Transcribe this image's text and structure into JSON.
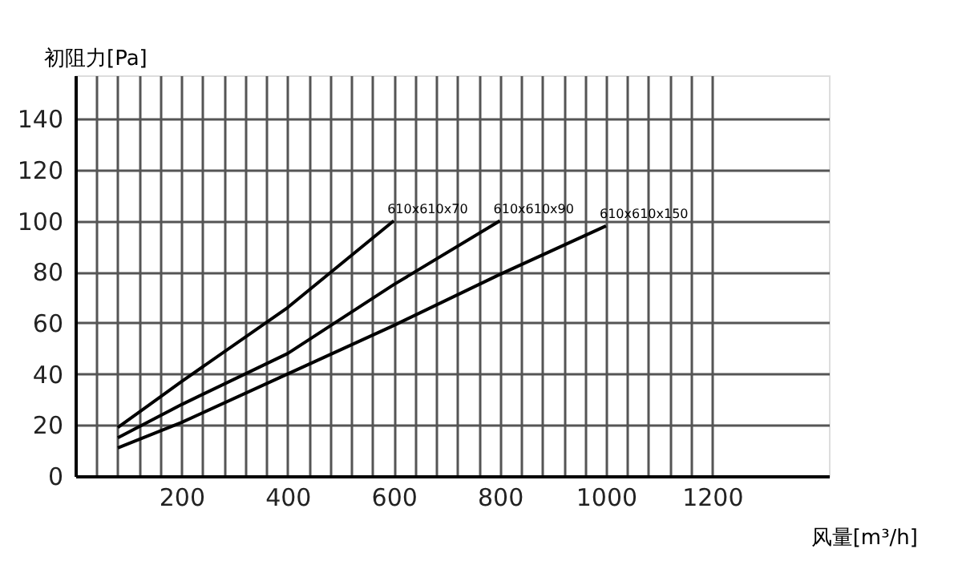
{
  "chart_data": {
    "type": "line",
    "xlabel": "风量[m³/h]",
    "ylabel": "初阻力[Pa]",
    "xlim": [
      0,
      1420
    ],
    "ylim": [
      0,
      157
    ],
    "xticks": [
      {
        "value": 40,
        "label": null
      },
      {
        "value": 80,
        "label": null
      },
      {
        "value": 120,
        "label": null
      },
      {
        "value": 160,
        "label": null
      },
      200,
      {
        "value": 240,
        "label": null
      },
      {
        "value": 280,
        "label": null
      },
      {
        "value": 320,
        "label": null
      },
      {
        "value": 360,
        "label": null
      },
      400,
      {
        "value": 440,
        "label": null
      },
      {
        "value": 480,
        "label": null
      },
      {
        "value": 520,
        "label": null
      },
      {
        "value": 560,
        "label": null
      },
      600,
      {
        "value": 640,
        "label": null
      },
      {
        "value": 680,
        "label": null
      },
      {
        "value": 720,
        "label": null
      },
      {
        "value": 760,
        "label": null
      },
      800,
      {
        "value": 840,
        "label": null
      },
      {
        "value": 880,
        "label": null
      },
      {
        "value": 920,
        "label": null
      },
      {
        "value": 960,
        "label": null
      },
      1000,
      {
        "value": 1040,
        "label": null
      },
      {
        "value": 1080,
        "label": null
      },
      {
        "value": 1120,
        "label": null
      },
      {
        "value": 1160,
        "label": null
      },
      1200
    ],
    "yticks": [
      0,
      20,
      40,
      60,
      80,
      100,
      120,
      140
    ],
    "grid": true,
    "legend": false,
    "marker": "none",
    "line_style": "solid",
    "series": [
      {
        "name": "610x610x70",
        "color": "#000000",
        "x": [
          80,
          200,
          400,
          600
        ],
        "values": [
          19,
          37,
          66,
          100
        ]
      },
      {
        "name": "610x610x90",
        "color": "#000000",
        "x": [
          80,
          200,
          400,
          600,
          800
        ],
        "values": [
          15,
          28,
          48,
          75,
          100
        ]
      },
      {
        "name": "610x610x150",
        "color": "#000000",
        "x": [
          80,
          200,
          400,
          600,
          800,
          1000
        ],
        "values": [
          11,
          21,
          40,
          59,
          79,
          98
        ]
      }
    ]
  }
}
